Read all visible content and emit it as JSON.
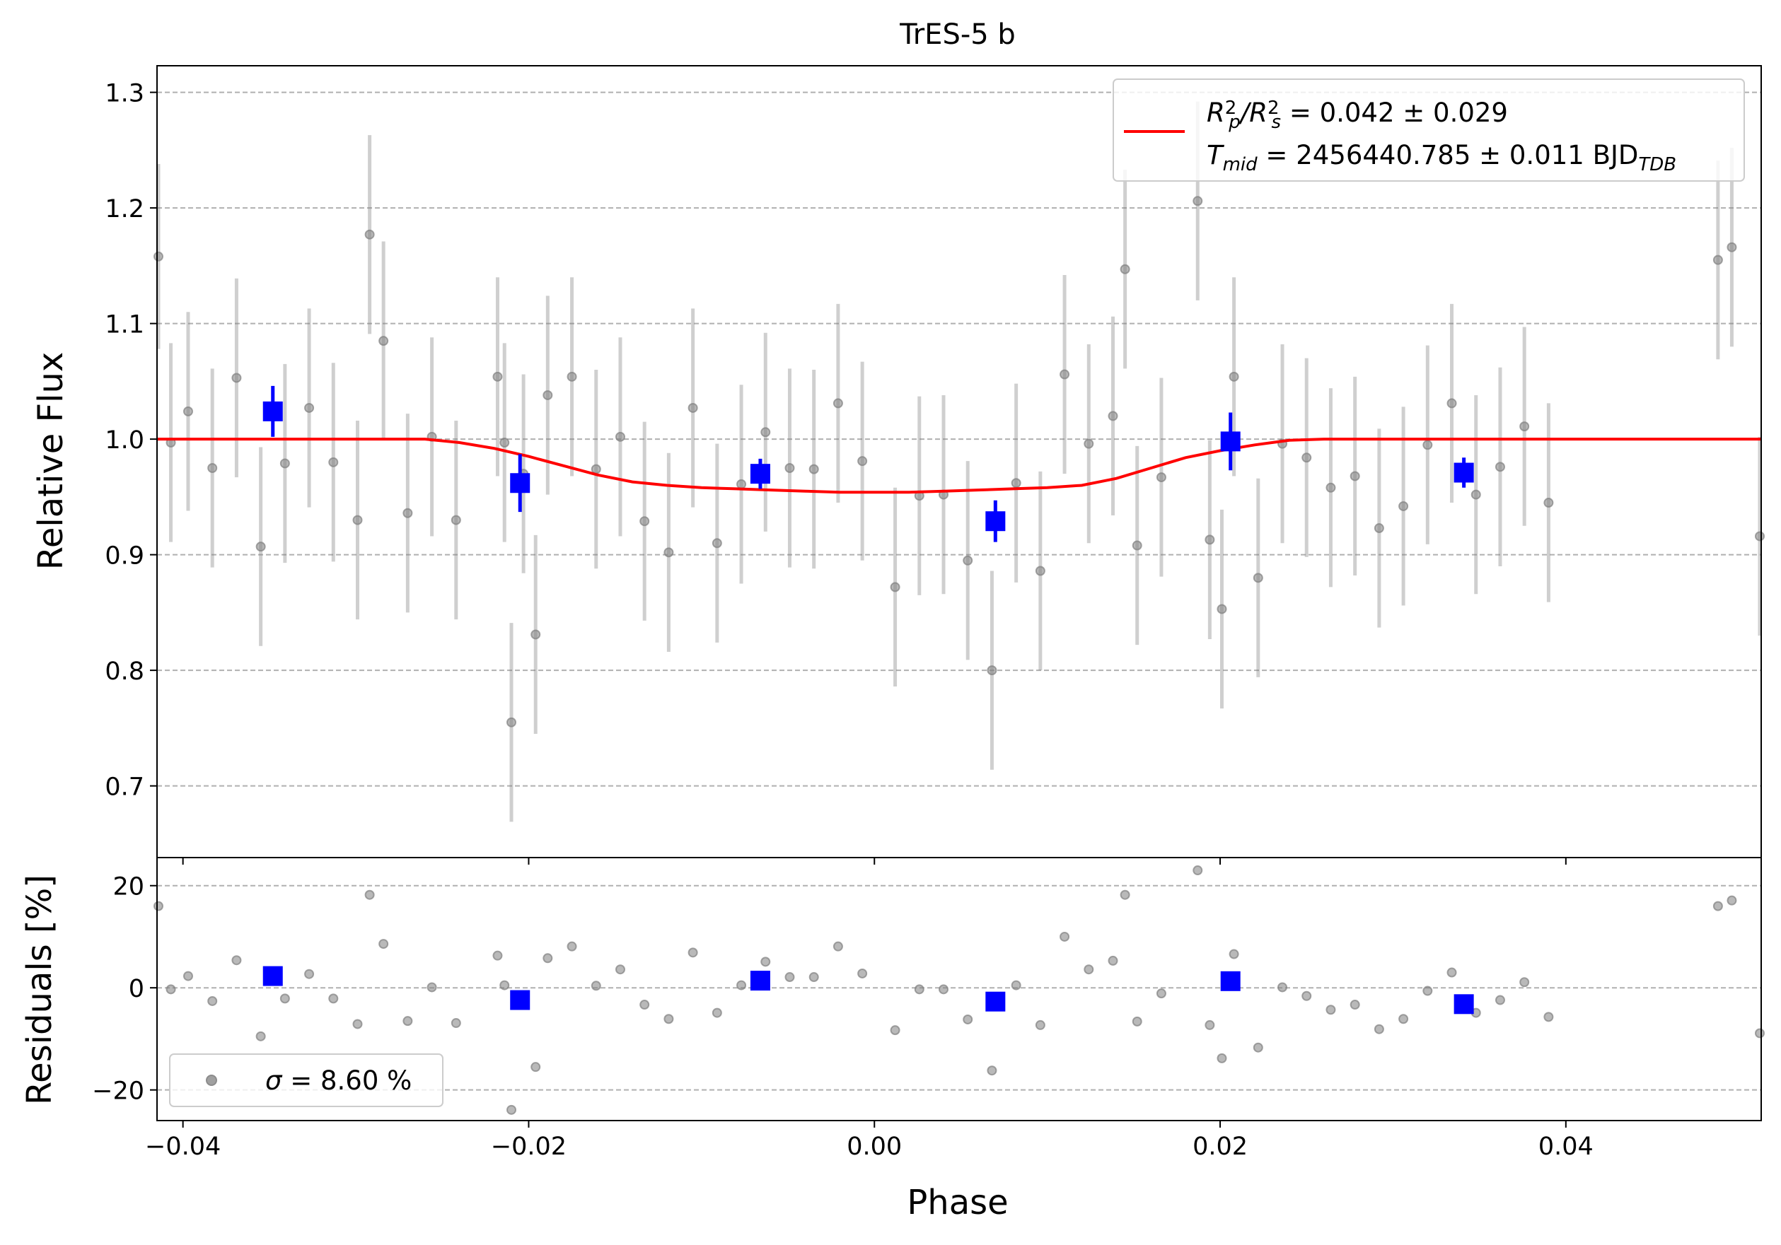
{
  "chart_data": [
    {
      "type": "scatter",
      "title": "TrES-5 b",
      "xlabel": "",
      "ylabel": "Relative Flux",
      "xlim": [
        -0.0415,
        0.0513
      ],
      "ylim": [
        0.638,
        1.323
      ],
      "grid": "y-dashed",
      "xticks": [
        -0.04,
        -0.02,
        0.0,
        0.02,
        0.04
      ],
      "yticks": [
        0.7,
        0.8,
        0.9,
        1.0,
        1.1,
        1.2,
        1.3
      ],
      "ytick_labels": [
        "0.7",
        "0.8",
        "0.9",
        "1.0",
        "1.1",
        "1.2",
        "1.3"
      ],
      "legend": {
        "location": "upper-right",
        "lines": [
          {
            "parts": [
              {
                "t": "R",
                "i": true
              },
              {
                "t": "2",
                "s": "sup",
                "k": 0
              },
              {
                "t": "p",
                "s": "sub",
                "i": true,
                "k": -11
              },
              {
                "t": "/",
                "i": true
              },
              {
                "t": "R",
                "i": true
              },
              {
                "t": "2",
                "s": "sup",
                "k": 0
              },
              {
                "t": "s",
                "s": "sub",
                "i": true,
                "k": -11
              },
              {
                "t": " = 0.042 ± 0.029"
              }
            ]
          },
          {
            "parts": [
              {
                "t": "T",
                "i": true
              },
              {
                "t": "mid",
                "s": "sub",
                "i": true
              },
              {
                "t": " = 2456440.785 ± 0.011 BJD"
              },
              {
                "t": "TDB",
                "s": "sub",
                "i": true
              }
            ]
          }
        ]
      },
      "series": [
        {
          "kind": "data",
          "color": "#808080",
          "points": [
            [
              -0.0415,
              1.158,
              0.08
            ],
            [
              -0.0407,
              0.997,
              0.086
            ],
            [
              -0.0397,
              1.024,
              0.086
            ],
            [
              -0.0383,
              0.975,
              0.086
            ],
            [
              -0.0369,
              1.053,
              0.086
            ],
            [
              -0.0355,
              0.907,
              0.086
            ],
            [
              -0.0341,
              0.979,
              0.086
            ],
            [
              -0.0327,
              1.027,
              0.086
            ],
            [
              -0.0313,
              0.98,
              0.086
            ],
            [
              -0.0299,
              0.93,
              0.086
            ],
            [
              -0.0292,
              1.177,
              0.086
            ],
            [
              -0.0284,
              1.085,
              0.086
            ],
            [
              -0.027,
              0.936,
              0.086
            ],
            [
              -0.0256,
              1.002,
              0.086
            ],
            [
              -0.0242,
              0.93,
              0.086
            ],
            [
              -0.0218,
              1.054,
              0.086
            ],
            [
              -0.0214,
              0.997,
              0.086
            ],
            [
              -0.021,
              0.755,
              0.086
            ],
            [
              -0.0203,
              0.97,
              0.086
            ],
            [
              -0.0196,
              0.831,
              0.086
            ],
            [
              -0.0189,
              1.038,
              0.086
            ],
            [
              -0.0175,
              1.054,
              0.086
            ],
            [
              -0.0161,
              0.974,
              0.086
            ],
            [
              -0.0147,
              1.002,
              0.086
            ],
            [
              -0.0133,
              0.929,
              0.086
            ],
            [
              -0.0119,
              0.902,
              0.086
            ],
            [
              -0.0105,
              1.027,
              0.086
            ],
            [
              -0.0091,
              0.91,
              0.086
            ],
            [
              -0.0077,
              0.961,
              0.086
            ],
            [
              -0.0063,
              1.006,
              0.086
            ],
            [
              -0.0049,
              0.975,
              0.086
            ],
            [
              -0.0035,
              0.974,
              0.086
            ],
            [
              -0.0021,
              1.031,
              0.086
            ],
            [
              -0.0007,
              0.981,
              0.086
            ],
            [
              0.0012,
              0.872,
              0.086
            ],
            [
              0.0026,
              0.951,
              0.086
            ],
            [
              0.004,
              0.952,
              0.086
            ],
            [
              0.0054,
              0.895,
              0.086
            ],
            [
              0.0068,
              0.8,
              0.086
            ],
            [
              0.0082,
              0.962,
              0.086
            ],
            [
              0.0096,
              0.886,
              0.086
            ],
            [
              0.011,
              1.056,
              0.086
            ],
            [
              0.0124,
              0.996,
              0.086
            ],
            [
              0.0138,
              1.02,
              0.086
            ],
            [
              0.0145,
              1.147,
              0.086
            ],
            [
              0.0152,
              0.908,
              0.086
            ],
            [
              0.0166,
              0.967,
              0.086
            ],
            [
              0.0187,
              1.206,
              0.086
            ],
            [
              0.0194,
              0.913,
              0.086
            ],
            [
              0.0201,
              0.853,
              0.086
            ],
            [
              0.0208,
              1.054,
              0.086
            ],
            [
              0.0222,
              0.88,
              0.086
            ],
            [
              0.0236,
              0.996,
              0.086
            ],
            [
              0.025,
              0.984,
              0.086
            ],
            [
              0.0264,
              0.958,
              0.086
            ],
            [
              0.0278,
              0.968,
              0.086
            ],
            [
              0.0292,
              0.923,
              0.086
            ],
            [
              0.0306,
              0.942,
              0.086
            ],
            [
              0.032,
              0.995,
              0.086
            ],
            [
              0.0334,
              1.031,
              0.086
            ],
            [
              0.0348,
              0.952,
              0.086
            ],
            [
              0.0362,
              0.976,
              0.086
            ],
            [
              0.0376,
              1.011,
              0.086
            ],
            [
              0.039,
              0.945,
              0.086
            ],
            [
              0.0488,
              1.155,
              0.086
            ],
            [
              0.0496,
              1.166,
              0.086
            ],
            [
              0.0513,
              0.916,
              0.086
            ]
          ]
        },
        {
          "kind": "binned",
          "color": "#0000ff",
          "points": [
            [
              -0.0348,
              1.024,
              0.022
            ],
            [
              -0.0205,
              0.962,
              0.025
            ],
            [
              -0.0066,
              0.97,
              0.013
            ],
            [
              0.007,
              0.929,
              0.018
            ],
            [
              0.0206,
              0.998,
              0.025
            ],
            [
              0.0341,
              0.971,
              0.013
            ]
          ]
        },
        {
          "kind": "model",
          "color": "#ff0000",
          "x": [
            -0.0415,
            -0.026,
            -0.024,
            -0.022,
            -0.02,
            -0.018,
            -0.016,
            -0.014,
            -0.012,
            -0.01,
            -0.008,
            -0.006,
            -0.004,
            -0.002,
            0.0,
            0.002,
            0.004,
            0.006,
            0.008,
            0.01,
            0.012,
            0.014,
            0.016,
            0.018,
            0.02,
            0.022,
            0.024,
            0.026,
            0.0513
          ],
          "y": [
            1.0,
            1.0,
            0.997,
            0.992,
            0.985,
            0.977,
            0.969,
            0.963,
            0.96,
            0.958,
            0.957,
            0.956,
            0.955,
            0.954,
            0.954,
            0.954,
            0.955,
            0.956,
            0.957,
            0.958,
            0.96,
            0.966,
            0.975,
            0.984,
            0.99,
            0.995,
            0.999,
            1.0,
            1.0
          ]
        }
      ]
    },
    {
      "type": "scatter",
      "title": "",
      "xlabel": "Phase",
      "ylabel": "Residuals [%]",
      "xlim": [
        -0.0415,
        0.0513
      ],
      "ylim": [
        -26,
        25.5
      ],
      "grid": "y-dashed",
      "xticks": [
        -0.04,
        -0.02,
        0.0,
        0.02,
        0.04
      ],
      "xtick_labels": [
        "−0.04",
        "−0.02",
        "0.00",
        "0.02",
        "0.04"
      ],
      "yticks": [
        -20,
        0,
        20
      ],
      "ytick_labels": [
        "−20",
        "0",
        "20"
      ],
      "legend": {
        "location": "lower-left",
        "lines": [
          {
            "parts": [
              {
                "t": "σ",
                "i": true
              },
              {
                "t": " = 8.60 %"
              }
            ]
          }
        ]
      },
      "series": [
        {
          "kind": "data",
          "color": "#808080",
          "points": [
            [
              -0.0415,
              16
            ],
            [
              -0.0407,
              -0.3
            ],
            [
              -0.0397,
              2.3
            ],
            [
              -0.0383,
              -2.6
            ],
            [
              -0.0369,
              5.4
            ],
            [
              -0.0355,
              -9.5
            ],
            [
              -0.0341,
              -2.1
            ],
            [
              -0.0327,
              2.7
            ],
            [
              -0.0313,
              -2.1
            ],
            [
              -0.0299,
              -7.1
            ],
            [
              -0.0292,
              18.2
            ],
            [
              -0.0284,
              8.6
            ],
            [
              -0.027,
              -6.5
            ],
            [
              -0.0256,
              0.1
            ],
            [
              -0.0242,
              -6.9
            ],
            [
              -0.0218,
              6.3
            ],
            [
              -0.0214,
              0.5
            ],
            [
              -0.021,
              -23.9
            ],
            [
              -0.0203,
              -2.9
            ],
            [
              -0.0196,
              -15.5
            ],
            [
              -0.0189,
              5.8
            ],
            [
              -0.0175,
              8.1
            ],
            [
              -0.0161,
              0.4
            ],
            [
              -0.0147,
              3.6
            ],
            [
              -0.0133,
              -3.3
            ],
            [
              -0.0119,
              -6.1
            ],
            [
              -0.0105,
              6.9
            ],
            [
              -0.0091,
              -4.9
            ],
            [
              -0.0077,
              0.5
            ],
            [
              -0.0063,
              5.1
            ],
            [
              -0.0049,
              2.1
            ],
            [
              -0.0035,
              2.1
            ],
            [
              -0.0021,
              8.1
            ],
            [
              -0.0007,
              2.8
            ],
            [
              0.0012,
              -8.3
            ],
            [
              0.0026,
              -0.3
            ],
            [
              0.004,
              -0.3
            ],
            [
              0.0054,
              -6.2
            ],
            [
              0.0068,
              -16.2
            ],
            [
              0.0082,
              0.5
            ],
            [
              0.0096,
              -7.3
            ],
            [
              0.011,
              10.0
            ],
            [
              0.0124,
              3.6
            ],
            [
              0.0138,
              5.3
            ],
            [
              0.0145,
              18.2
            ],
            [
              0.0152,
              -6.6
            ],
            [
              0.0166,
              -1.1
            ],
            [
              0.0187,
              23.0
            ],
            [
              0.0194,
              -7.3
            ],
            [
              0.0201,
              -13.8
            ],
            [
              0.0208,
              6.6
            ],
            [
              0.0222,
              -11.7
            ],
            [
              0.0236,
              0.1
            ],
            [
              0.025,
              -1.6
            ],
            [
              0.0264,
              -4.3
            ],
            [
              0.0278,
              -3.3
            ],
            [
              0.0292,
              -8.1
            ],
            [
              0.0306,
              -6.1
            ],
            [
              0.032,
              -0.6
            ],
            [
              0.0334,
              3.0
            ],
            [
              0.0348,
              -4.9
            ],
            [
              0.0362,
              -2.4
            ],
            [
              0.0376,
              1.1
            ],
            [
              0.039,
              -5.7
            ],
            [
              0.0488,
              16.0
            ],
            [
              0.0496,
              17.1
            ],
            [
              0.0513,
              -8.9
            ]
          ]
        },
        {
          "kind": "binned",
          "color": "#0000ff",
          "points": [
            [
              -0.0348,
              2.3
            ],
            [
              -0.0205,
              -2.4
            ],
            [
              -0.0066,
              1.4
            ],
            [
              0.007,
              -2.7
            ],
            [
              0.0206,
              1.3
            ],
            [
              0.0341,
              -3.2
            ]
          ]
        }
      ]
    }
  ]
}
